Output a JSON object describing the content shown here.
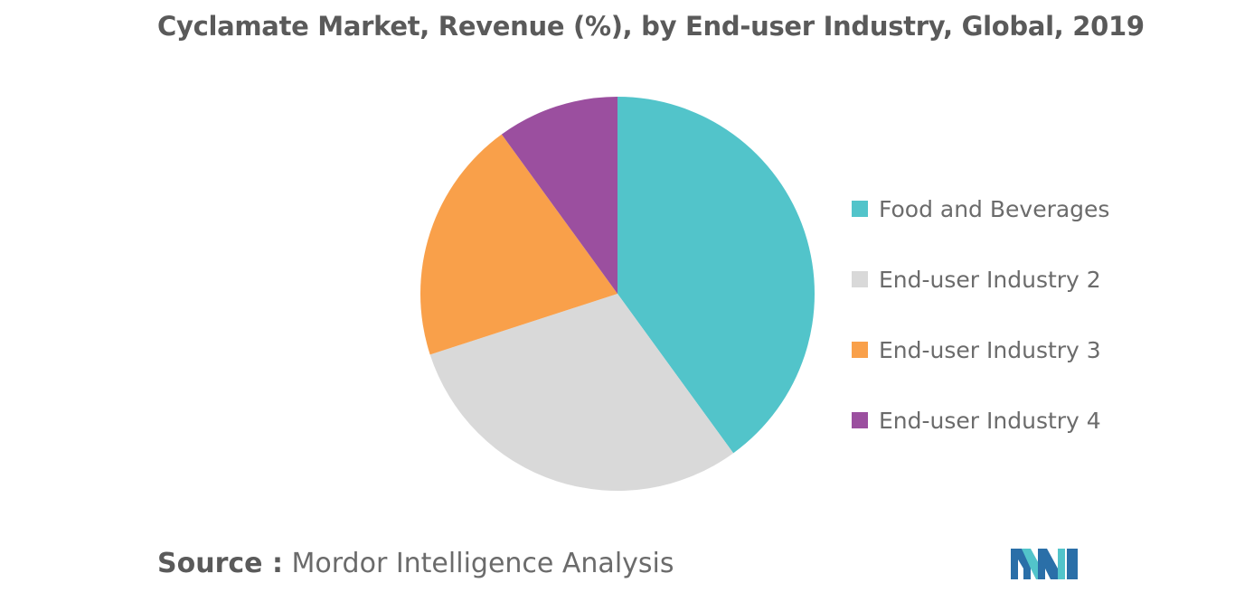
{
  "title": "Cyclamate Market, Revenue (%), by End-user Industry, Global, 2019",
  "source": {
    "label": "Source :",
    "text": "Mordor Intelligence Analysis"
  },
  "logo_icon": "mordor-intelligence-logo",
  "chart_data": {
    "type": "pie",
    "title": "Cyclamate Market, Revenue (%), by End-user Industry, Global, 2019",
    "categories": [
      "Food and Beverages",
      "End-user Industry 2",
      "End-user Industry 3",
      "End-user Industry 4"
    ],
    "values": [
      40,
      30,
      20,
      10
    ],
    "colors": [
      "#52c4ca",
      "#d9d9d9",
      "#f9a04a",
      "#9b4f9f"
    ],
    "start_angle": "12 o'clock",
    "direction": "clockwise",
    "legend": "right"
  }
}
